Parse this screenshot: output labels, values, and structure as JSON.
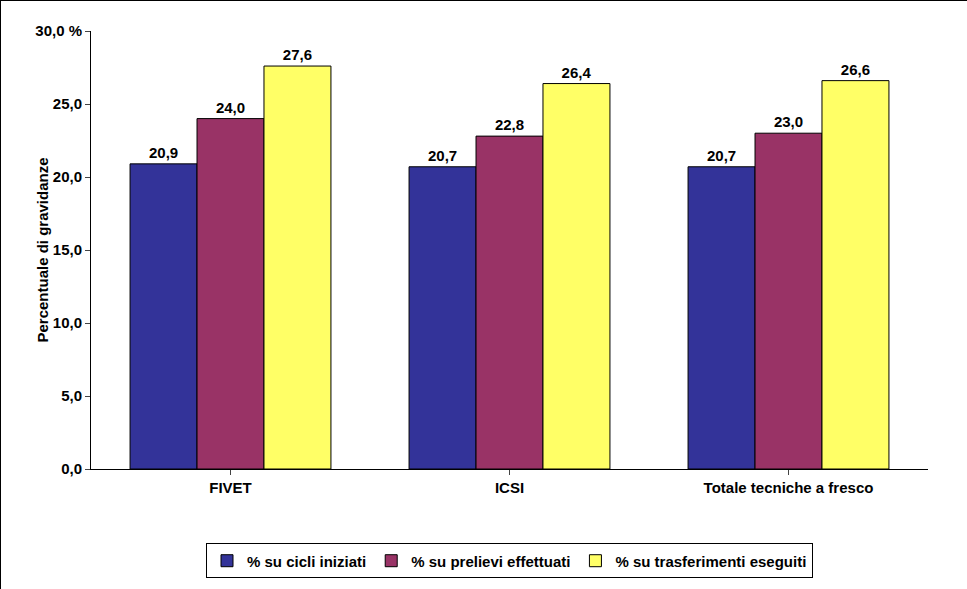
{
  "chart_data": {
    "type": "bar",
    "y_label": "Percentuale di gravidanze",
    "categories": [
      "FIVET",
      "ICSI",
      "Totale tecniche a fresco"
    ],
    "series": [
      {
        "name": "% su cicli iniziati",
        "color": "#333399",
        "values": [
          20.9,
          20.7,
          20.7
        ],
        "value_labels": [
          "20,9",
          "20,7",
          "20,7"
        ]
      },
      {
        "name": "% su prelievi effettuati",
        "color": "#993366",
        "values": [
          24.0,
          22.8,
          23.0
        ],
        "value_labels": [
          "24,0",
          "22,8",
          "23,0"
        ]
      },
      {
        "name": "% su trasferimenti eseguiti",
        "color": "#FFFF66",
        "values": [
          27.6,
          26.4,
          26.6
        ],
        "value_labels": [
          "27,6",
          "26,4",
          "26,6"
        ]
      }
    ],
    "ylim": [
      0,
      30
    ],
    "yticks": [
      {
        "value": 0,
        "label": "0,0"
      },
      {
        "value": 5,
        "label": "5,0"
      },
      {
        "value": 10,
        "label": "10,0"
      },
      {
        "value": 15,
        "label": "15,0"
      },
      {
        "value": 20,
        "label": "20,0"
      },
      {
        "value": 25,
        "label": "25,0"
      },
      {
        "value": 30,
        "label": "30,0 %"
      }
    ],
    "grid": false,
    "legend": "bottom",
    "data_labels": true
  }
}
